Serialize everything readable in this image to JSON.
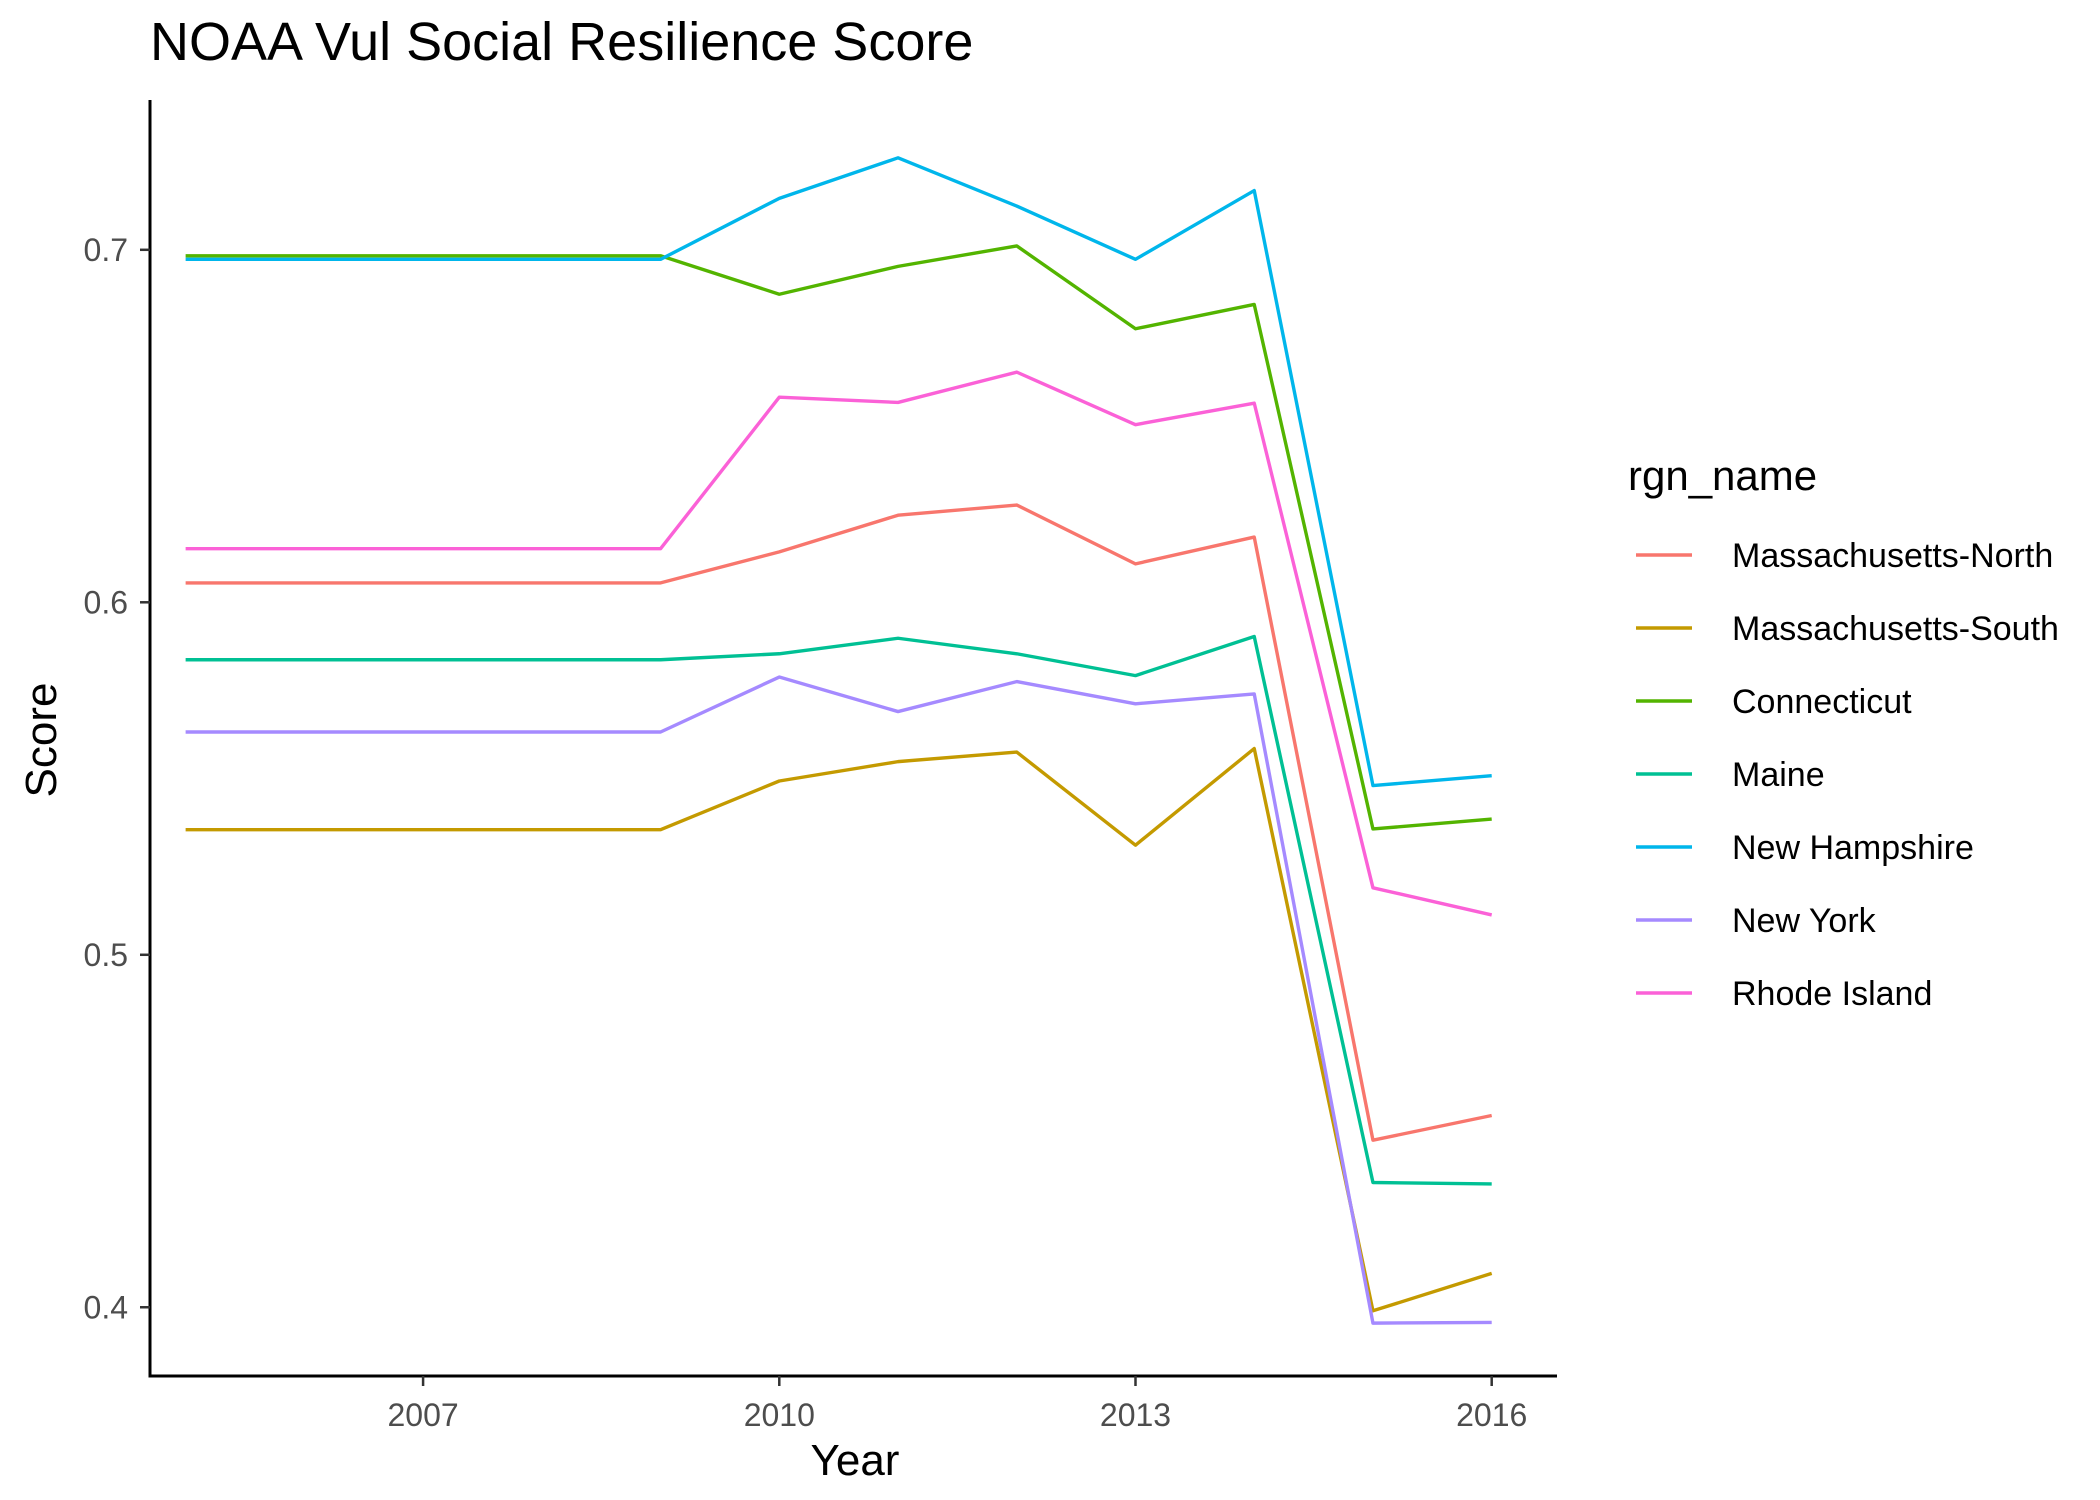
{
  "chart_data": {
    "type": "line",
    "title": "NOAA Vul Social Resilience Score",
    "xlabel": "Year",
    "ylabel": "Score",
    "x": [
      2005,
      2006,
      2007,
      2008,
      2009,
      2010,
      2011,
      2012,
      2013,
      2014,
      2015,
      2016
    ],
    "xlim": [
      2004.7,
      2016.55
    ],
    "ylim": [
      0.3805,
      0.7425
    ],
    "x_ticks": [
      2007,
      2010,
      2013,
      2016
    ],
    "x_tick_labels": [
      "2007",
      "2010",
      "2013",
      "2016"
    ],
    "y_ticks": [
      0.4,
      0.5,
      0.6,
      0.7
    ],
    "y_tick_labels": [
      "0.4",
      "0.5",
      "0.6",
      "0.7"
    ],
    "grid": false,
    "legend_title": "rgn_name",
    "legend_position": "right",
    "series": [
      {
        "name": "Massachusetts-North",
        "color": "#F8766D",
        "values": [
          0.6055,
          0.6055,
          0.6055,
          0.6055,
          0.6055,
          0.6143,
          0.6247,
          0.6276,
          0.6109,
          0.6185,
          0.4474,
          0.4544
        ]
      },
      {
        "name": "Massachusetts-South",
        "color": "#C49A00",
        "values": [
          0.5355,
          0.5355,
          0.5355,
          0.5355,
          0.5355,
          0.5493,
          0.5548,
          0.5575,
          0.5311,
          0.5585,
          0.399,
          0.4096
        ]
      },
      {
        "name": "Connecticut",
        "color": "#53B400",
        "values": [
          0.6983,
          0.6983,
          0.6983,
          0.6983,
          0.6983,
          0.6874,
          0.6953,
          0.7011,
          0.6776,
          0.6845,
          0.5357,
          0.5385
        ]
      },
      {
        "name": "Maine",
        "color": "#00C094",
        "values": [
          0.5837,
          0.5837,
          0.5837,
          0.5837,
          0.5837,
          0.5854,
          0.5898,
          0.5854,
          0.5792,
          0.5903,
          0.4354,
          0.435
        ]
      },
      {
        "name": "New Hampshire",
        "color": "#00B6EB",
        "values": [
          0.6973,
          0.6973,
          0.6973,
          0.6973,
          0.6973,
          0.7146,
          0.7261,
          0.7124,
          0.6973,
          0.7168,
          0.548,
          0.5508
        ]
      },
      {
        "name": "New York",
        "color": "#A58AFF",
        "values": [
          0.5632,
          0.5632,
          0.5632,
          0.5632,
          0.5632,
          0.5788,
          0.569,
          0.5775,
          0.5712,
          0.574,
          0.3955,
          0.3957
        ]
      },
      {
        "name": "Rhode Island",
        "color": "#FB61D7",
        "values": [
          0.6152,
          0.6152,
          0.6152,
          0.6152,
          0.6152,
          0.6582,
          0.6567,
          0.6653,
          0.6504,
          0.6565,
          0.519,
          0.5113
        ]
      }
    ]
  }
}
